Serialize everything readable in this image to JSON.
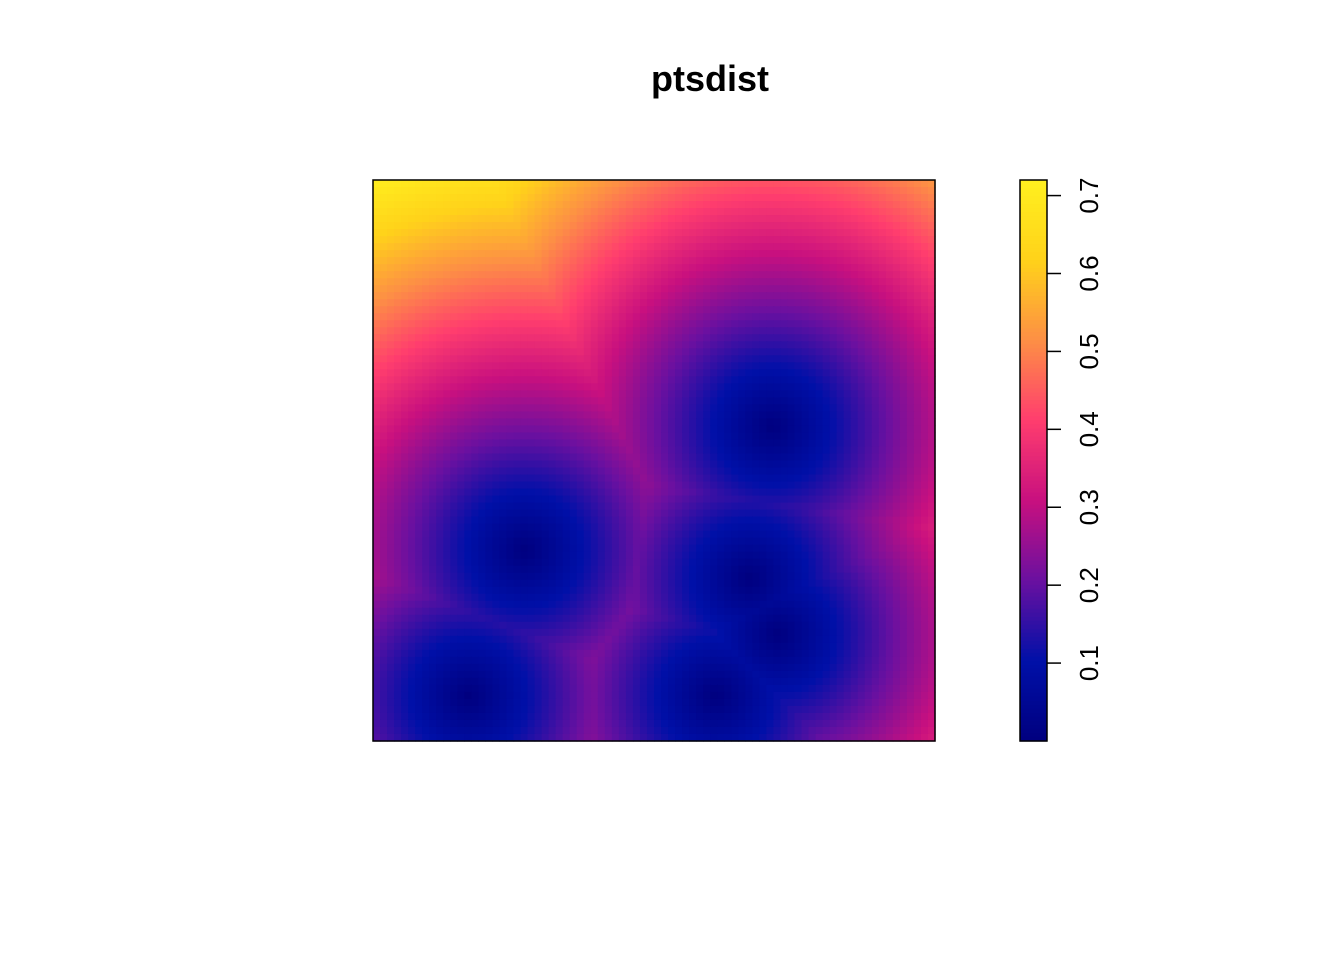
{
  "chart_data": {
    "type": "heatmap",
    "title": "ptsdist",
    "xlabel": "",
    "ylabel": "",
    "xlim": [
      0,
      1
    ],
    "ylim": [
      0,
      1
    ],
    "points": [
      {
        "x": 0.17,
        "y": 0.08
      },
      {
        "x": 0.27,
        "y": 0.34
      },
      {
        "x": 0.61,
        "y": 0.08
      },
      {
        "x": 0.67,
        "y": 0.29
      },
      {
        "x": 0.72,
        "y": 0.19
      },
      {
        "x": 0.71,
        "y": 0.56
      }
    ],
    "value_range": [
      0,
      0.72
    ],
    "colorbar": {
      "ticks": [
        0.1,
        0.2,
        0.3,
        0.4,
        0.5,
        0.6,
        0.7
      ],
      "tick_labels": [
        "0.1",
        "0.2",
        "0.3",
        "0.4",
        "0.5",
        "0.6",
        "0.7"
      ],
      "orientation": "vertical",
      "label_rotation": "rotated-90",
      "placement": "right"
    },
    "palette": [
      "#00007f",
      "#0010a8",
      "#6a10a0",
      "#c8107f",
      "#ff3d6e",
      "#fd8f45",
      "#ffd21a",
      "#fff01f"
    ],
    "axes_drawn": false,
    "grid": false
  }
}
